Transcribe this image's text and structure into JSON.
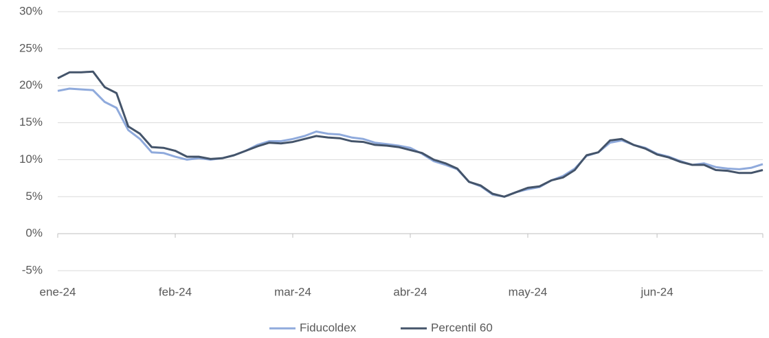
{
  "chart_data": {
    "type": "line",
    "categories": [
      "ene-24",
      null,
      null,
      null,
      null,
      null,
      null,
      null,
      null,
      null,
      "feb-24",
      null,
      null,
      null,
      null,
      null,
      null,
      null,
      null,
      null,
      "mar-24",
      null,
      null,
      null,
      null,
      null,
      null,
      null,
      null,
      null,
      "abr-24",
      null,
      null,
      null,
      null,
      null,
      null,
      null,
      null,
      null,
      "may-24",
      null,
      null,
      null,
      null,
      null,
      null,
      null,
      null,
      null,
      null,
      "jun-24",
      null,
      null,
      null,
      null,
      null,
      null,
      null,
      null,
      null
    ],
    "series": [
      {
        "name": "Fiducoldex",
        "color": "#8faadc",
        "values": [
          19.3,
          19.6,
          19.5,
          19.4,
          17.8,
          17.0,
          14.0,
          12.8,
          11.0,
          10.9,
          10.4,
          10.0,
          10.2,
          10.0,
          10.2,
          10.6,
          11.2,
          12.0,
          12.5,
          12.5,
          12.8,
          13.2,
          13.8,
          13.5,
          13.4,
          13.0,
          12.8,
          12.3,
          12.1,
          11.9,
          11.6,
          10.8,
          9.8,
          9.3,
          8.7,
          7.0,
          6.4,
          5.3,
          5.0,
          5.6,
          6.0,
          6.3,
          7.2,
          7.8,
          8.8,
          10.5,
          11.0,
          12.3,
          12.6,
          12.0,
          11.6,
          10.8,
          10.4,
          9.8,
          9.3,
          9.5,
          9.0,
          8.8,
          8.7,
          8.9,
          9.4
        ]
      },
      {
        "name": "Percentil 60",
        "color": "#44546a",
        "values": [
          21.0,
          21.8,
          21.8,
          21.9,
          19.8,
          19.0,
          14.5,
          13.5,
          11.7,
          11.6,
          11.2,
          10.4,
          10.4,
          10.1,
          10.2,
          10.6,
          11.2,
          11.8,
          12.3,
          12.2,
          12.4,
          12.8,
          13.2,
          13.0,
          12.9,
          12.5,
          12.4,
          12.0,
          11.9,
          11.7,
          11.3,
          10.9,
          10.0,
          9.5,
          8.8,
          7.0,
          6.5,
          5.4,
          5.0,
          5.6,
          6.2,
          6.4,
          7.2,
          7.6,
          8.6,
          10.6,
          11.0,
          12.6,
          12.8,
          12.0,
          11.5,
          10.7,
          10.3,
          9.7,
          9.3,
          9.3,
          8.6,
          8.5,
          8.2,
          8.2,
          8.6
        ]
      }
    ],
    "ylim": [
      -5,
      30
    ],
    "yticks": [
      {
        "value": -5,
        "label": "-5%"
      },
      {
        "value": 0,
        "label": "0%"
      },
      {
        "value": 5,
        "label": "5%"
      },
      {
        "value": 10,
        "label": "10%"
      },
      {
        "value": 15,
        "label": "15%"
      },
      {
        "value": 20,
        "label": "20%"
      },
      {
        "value": 25,
        "label": "25%"
      },
      {
        "value": 30,
        "label": "30%"
      }
    ],
    "grid": true,
    "legend": "bottom"
  }
}
